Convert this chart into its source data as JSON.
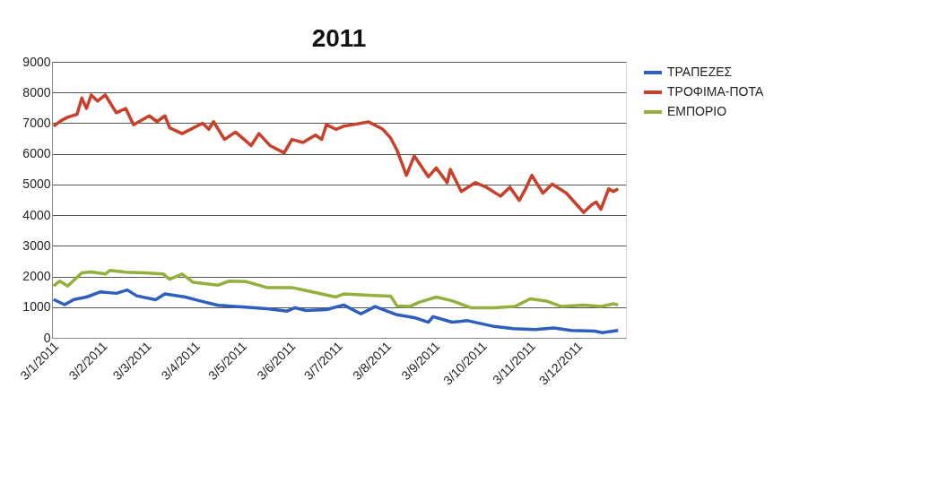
{
  "chart_data": {
    "type": "line",
    "title": "2011",
    "xlim": [
      "2011-01-03",
      "2012-01-04"
    ],
    "xticks": [
      {
        "value": "2011-01-03",
        "label": "3/1/2011"
      },
      {
        "value": "2011-02-03",
        "label": "3/2/2011"
      },
      {
        "value": "2011-03-03",
        "label": "3/3/2011"
      },
      {
        "value": "2011-04-03",
        "label": "3/4/2011"
      },
      {
        "value": "2011-05-03",
        "label": "3/5/2011"
      },
      {
        "value": "2011-06-03",
        "label": "3/6/2011"
      },
      {
        "value": "2011-07-03",
        "label": "3/7/2011"
      },
      {
        "value": "2011-08-03",
        "label": "3/8/2011"
      },
      {
        "value": "2011-09-03",
        "label": "3/9/2011"
      },
      {
        "value": "2011-10-03",
        "label": "3/10/2011"
      },
      {
        "value": "2011-11-03",
        "label": "3/11/2011"
      },
      {
        "value": "2011-12-03",
        "label": "3/12/2011"
      }
    ],
    "ylim": [
      0,
      9000
    ],
    "yticks": [
      0,
      1000,
      2000,
      3000,
      4000,
      5000,
      6000,
      7000,
      8000,
      9000
    ],
    "grid": "y",
    "legend": "right",
    "marker": "none",
    "line_style": "solid",
    "series": [
      {
        "name": "ΤΡΑΠΕΖΕΣ",
        "color": "#2e5fbf",
        "x": [
          "2011-01-04",
          "2011-01-11",
          "2011-01-17",
          "2011-01-25",
          "2011-02-03",
          "2011-02-13",
          "2011-02-20",
          "2011-02-26",
          "2011-03-10",
          "2011-03-16",
          "2011-03-29",
          "2011-04-07",
          "2011-04-19",
          "2011-05-04",
          "2011-05-20",
          "2011-06-02",
          "2011-06-07",
          "2011-06-14",
          "2011-06-27",
          "2011-07-08",
          "2011-07-19",
          "2011-07-28",
          "2011-08-11",
          "2011-08-22",
          "2011-08-31",
          "2011-09-03",
          "2011-09-15",
          "2011-09-25",
          "2011-10-12",
          "2011-10-24",
          "2011-11-07",
          "2011-11-19",
          "2011-11-30",
          "2011-12-15",
          "2011-12-20",
          "2011-12-30"
        ],
        "values": [
          1250,
          1080,
          1250,
          1330,
          1500,
          1450,
          1560,
          1370,
          1240,
          1430,
          1330,
          1210,
          1060,
          1010,
          950,
          870,
          980,
          890,
          920,
          1070,
          780,
          1020,
          750,
          660,
          510,
          690,
          510,
          560,
          370,
          300,
          270,
          320,
          240,
          220,
          170,
          240
        ]
      },
      {
        "name": "ΤΡΟΦΙΜΑ-ΠΟΤΑ",
        "color": "#c8402a",
        "x": [
          "2011-01-04",
          "2011-01-09",
          "2011-01-13",
          "2011-01-19",
          "2011-01-22",
          "2011-01-25",
          "2011-01-28",
          "2011-02-01",
          "2011-02-06",
          "2011-02-13",
          "2011-02-19",
          "2011-02-24",
          "2011-03-06",
          "2011-03-11",
          "2011-03-16",
          "2011-03-19",
          "2011-03-27",
          "2011-04-09",
          "2011-04-13",
          "2011-04-16",
          "2011-04-23",
          "2011-04-30",
          "2011-05-10",
          "2011-05-15",
          "2011-05-22",
          "2011-05-31",
          "2011-06-05",
          "2011-06-12",
          "2011-06-20",
          "2011-06-24",
          "2011-06-27",
          "2011-07-03",
          "2011-07-08",
          "2011-07-24",
          "2011-08-02",
          "2011-08-07",
          "2011-08-11",
          "2011-08-17",
          "2011-08-22",
          "2011-08-31",
          "2011-09-05",
          "2011-09-12",
          "2011-09-14",
          "2011-09-21",
          "2011-09-30",
          "2011-10-07",
          "2011-10-16",
          "2011-10-22",
          "2011-10-28",
          "2011-11-01",
          "2011-11-05",
          "2011-11-12",
          "2011-11-18",
          "2011-11-27",
          "2011-12-08",
          "2011-12-13",
          "2011-12-16",
          "2011-12-19",
          "2011-12-24",
          "2011-12-27",
          "2011-12-30"
        ],
        "values": [
          6900,
          7090,
          7190,
          7290,
          7820,
          7480,
          7920,
          7720,
          7920,
          7340,
          7480,
          6950,
          7240,
          7050,
          7240,
          6850,
          6660,
          7000,
          6800,
          7050,
          6470,
          6710,
          6270,
          6660,
          6270,
          6030,
          6470,
          6370,
          6610,
          6470,
          6950,
          6800,
          6900,
          7040,
          6800,
          6510,
          6120,
          5300,
          5930,
          5250,
          5540,
          5060,
          5490,
          4770,
          5060,
          4910,
          4620,
          4910,
          4480,
          4860,
          5300,
          4720,
          5010,
          4720,
          4090,
          4330,
          4430,
          4190,
          4860,
          4770,
          4860
        ]
      },
      {
        "name": "ΕΜΠΟΡΙΟ",
        "color": "#94b03c",
        "x": [
          "2011-01-04",
          "2011-01-08",
          "2011-01-13",
          "2011-01-22",
          "2011-01-28",
          "2011-02-06",
          "2011-02-09",
          "2011-02-19",
          "2011-03-03",
          "2011-03-15",
          "2011-03-19",
          "2011-03-27",
          "2011-04-03",
          "2011-04-19",
          "2011-04-26",
          "2011-05-07",
          "2011-05-20",
          "2011-06-05",
          "2011-06-14",
          "2011-07-03",
          "2011-07-08",
          "2011-07-27",
          "2011-08-07",
          "2011-08-11",
          "2011-08-19",
          "2011-08-25",
          "2011-09-05",
          "2011-09-15",
          "2011-09-27",
          "2011-10-12",
          "2011-10-25",
          "2011-11-04",
          "2011-11-15",
          "2011-11-24",
          "2011-12-08",
          "2011-12-19",
          "2011-12-27",
          "2011-12-30"
        ],
        "values": [
          1690,
          1850,
          1690,
          2120,
          2150,
          2080,
          2200,
          2140,
          2120,
          2080,
          1910,
          2080,
          1810,
          1720,
          1850,
          1830,
          1640,
          1640,
          1540,
          1330,
          1430,
          1380,
          1360,
          1040,
          1020,
          1160,
          1330,
          1210,
          980,
          980,
          1020,
          1270,
          1190,
          1020,
          1070,
          1020,
          1110,
          1070
        ]
      }
    ]
  }
}
